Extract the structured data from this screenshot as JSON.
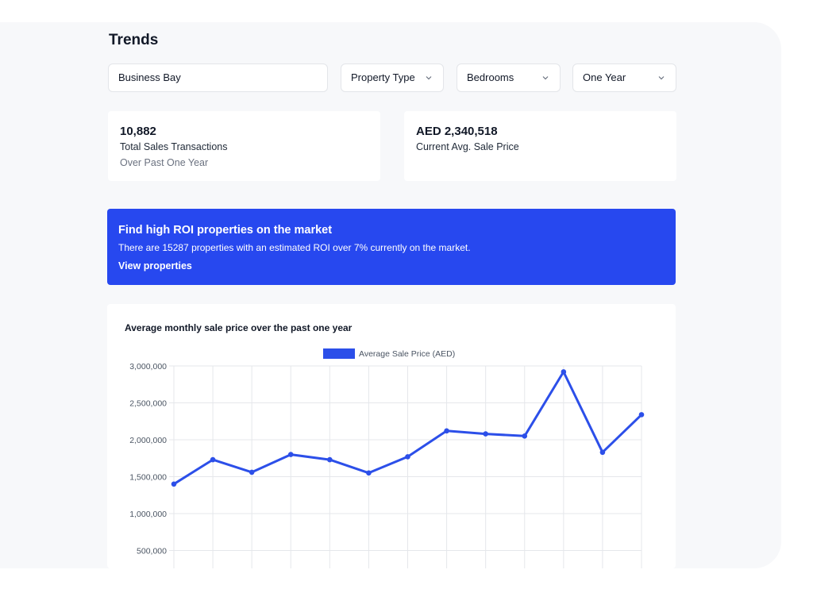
{
  "header": {
    "title": "Trends"
  },
  "filters": {
    "location": "Business Bay",
    "property_type": "Property Type",
    "bedrooms": "Bedrooms",
    "period": "One Year"
  },
  "stats": {
    "transactions": {
      "value": "10,882",
      "label": "Total Sales Transactions",
      "sub": "Over Past One Year"
    },
    "avg_price": {
      "value": "AED 2,340,518",
      "label": "Current Avg. Sale Price"
    }
  },
  "banner": {
    "heading": "Find high ROI properties on the market",
    "text": "There are 15287 properties with an estimated ROI over 7% currently on the market.",
    "link": "View properties",
    "color": "#2748ef"
  },
  "chart_title": "Average monthly sale price over the past one year",
  "chart_data": {
    "type": "line",
    "series": [
      {
        "name": "Average Sale Price (AED)",
        "color": "#2c4fe9",
        "values": [
          1400000,
          1730000,
          1560000,
          1800000,
          1730000,
          1550000,
          1770000,
          2120000,
          2080000,
          2050000,
          2920000,
          1830000,
          2340000
        ]
      }
    ],
    "y_ticks": [
      "3,000,000",
      "2,500,000",
      "2,000,000",
      "1,500,000",
      "1,000,000",
      "500,000"
    ],
    "ylim": [
      0,
      3000000
    ],
    "grid": true,
    "legend": "top-center"
  }
}
